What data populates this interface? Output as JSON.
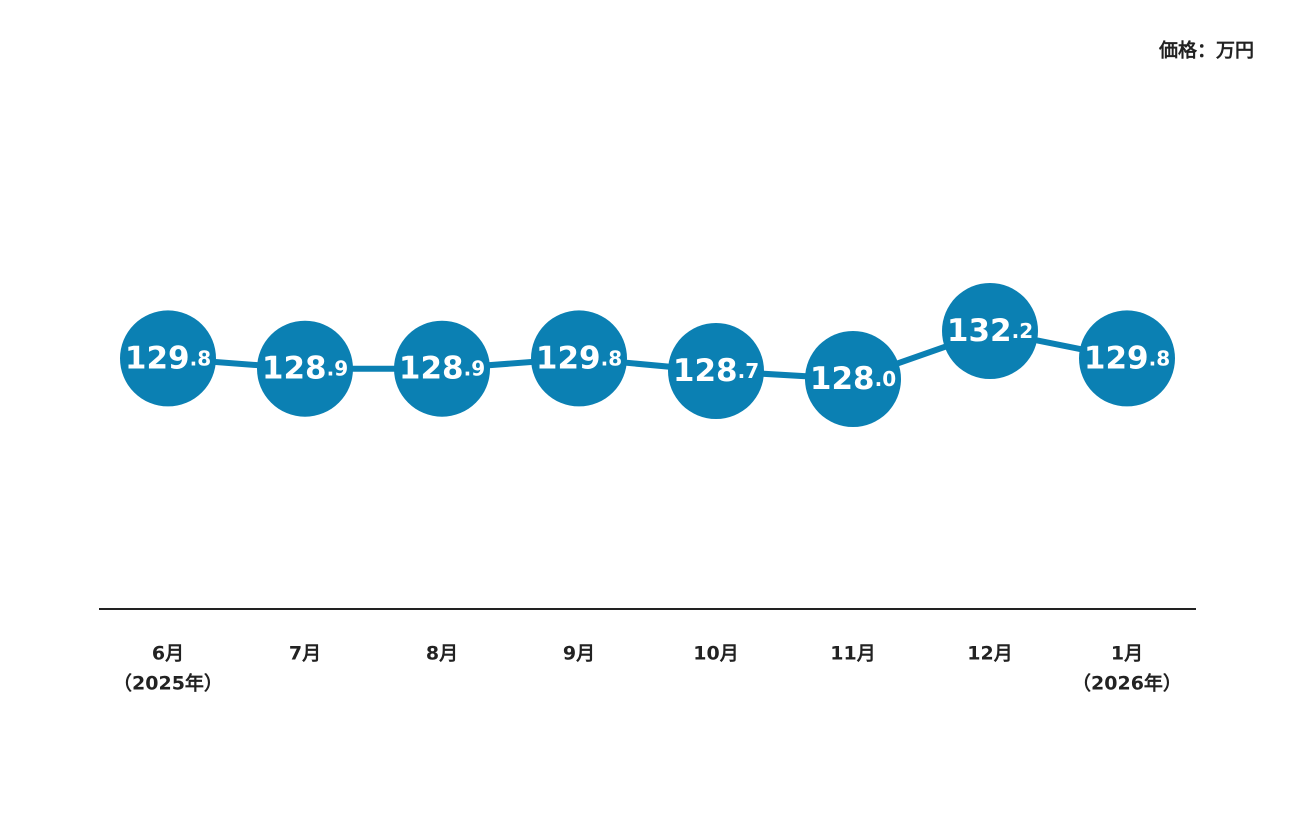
{
  "chart_data": {
    "type": "line",
    "unit_label": "価格：万円",
    "categories": [
      [
        "6月",
        "（2025年）"
      ],
      [
        "7月"
      ],
      [
        "8月"
      ],
      [
        "9月"
      ],
      [
        "10月"
      ],
      [
        "11月"
      ],
      [
        "12月"
      ],
      [
        "1月",
        "（2026年）"
      ]
    ],
    "values": [
      129.8,
      128.9,
      128.9,
      129.8,
      128.7,
      128.0,
      132.2,
      129.8
    ],
    "value_labels": [
      "129.8",
      "128.9",
      "128.9",
      "129.8",
      "128.7",
      "128.0",
      "132.2",
      "129.8"
    ],
    "color": "#0b80b3"
  }
}
